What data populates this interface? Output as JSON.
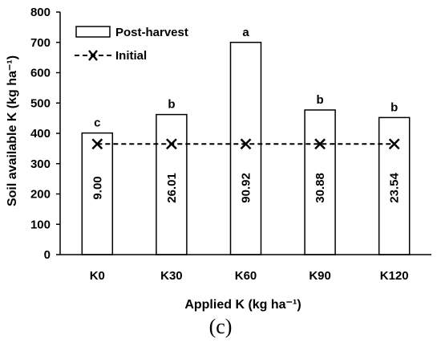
{
  "chart_data": {
    "type": "bar",
    "xlabel": "Applied K (kg ha⁻¹)",
    "ylabel": "Soil available K (kg ha⁻¹)",
    "ylim": [
      0,
      800
    ],
    "yticks": [
      0,
      100,
      200,
      300,
      400,
      500,
      600,
      700,
      800
    ],
    "categories": [
      "K0",
      "K30",
      "K60",
      "K90",
      "K120"
    ],
    "series": [
      {
        "name": "Post-harvest",
        "values": [
          401,
          462,
          700,
          477,
          452
        ],
        "letters": [
          "c",
          "b",
          "a",
          "b",
          "b"
        ],
        "bar_labels": [
          "9.00",
          "26.01",
          "90.92",
          "30.88",
          "23.54"
        ]
      },
      {
        "name": "Initial",
        "values": [
          365,
          365,
          365,
          365,
          365
        ]
      }
    ],
    "legend_position": "top-left",
    "grid": false
  },
  "panel_label": "(c)"
}
